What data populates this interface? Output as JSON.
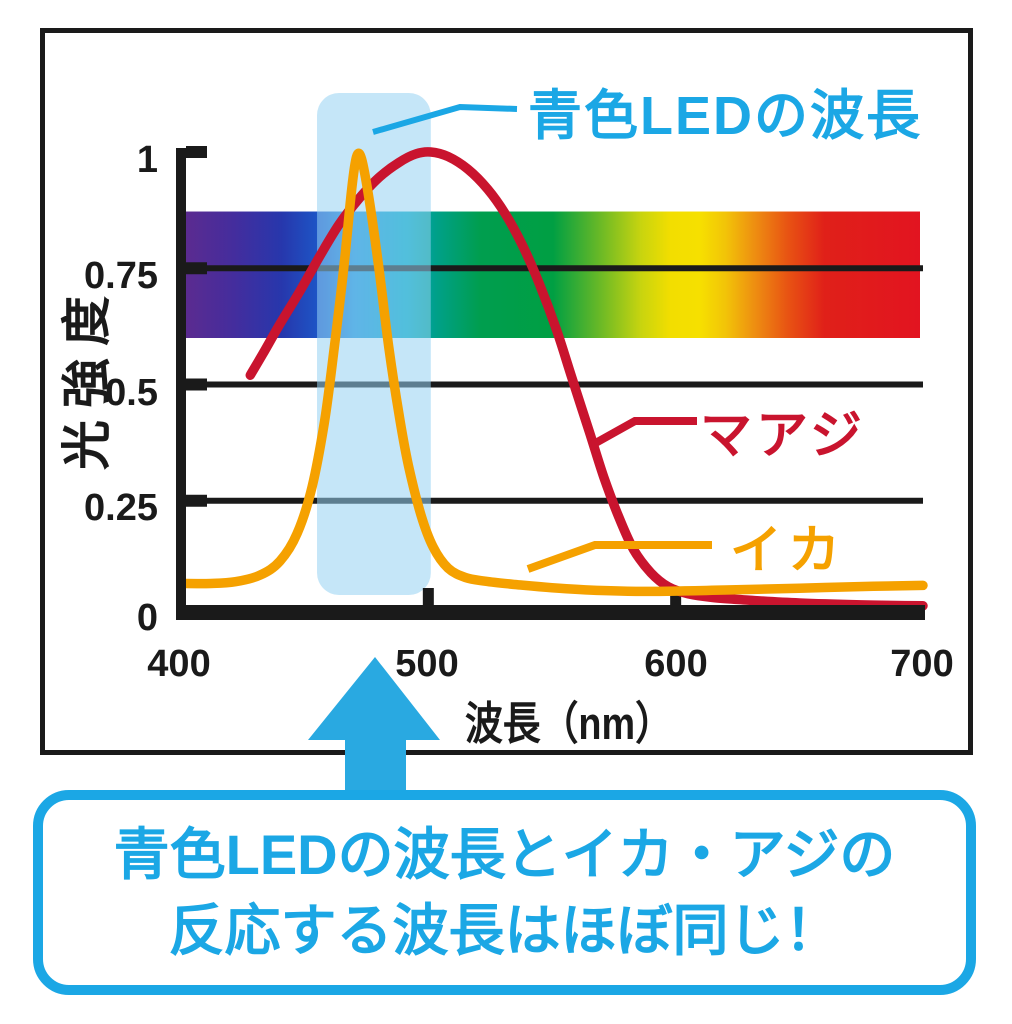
{
  "chart": {
    "y_axis_label": "光強度",
    "x_axis_label": "波長（nm）",
    "y_tick_labels": [
      "1",
      "0.75",
      "0.5",
      "0.25",
      "0"
    ],
    "x_tick_labels": [
      "400",
      "500",
      "600",
      "700"
    ],
    "band_label": "青色LEDの波長",
    "series_label_red": "マアジ",
    "series_label_orange": "イカ"
  },
  "callout_box": {
    "line1": "青色LEDの波長とイカ・アジの",
    "line2": "反応する波長はほぼ同じ！"
  },
  "colors": {
    "accent_blue": "#1ba7e5",
    "highlight_band": "#cfe9f8",
    "red": "#c9142e",
    "orange": "#f5a100",
    "black": "#1a1a1a"
  },
  "chart_data": {
    "type": "line",
    "xlabel": "波長（nm）",
    "ylabel": "光強度",
    "xlim": [
      400,
      700
    ],
    "ylim": [
      0,
      1
    ],
    "x_ticks": [
      400,
      500,
      600,
      700
    ],
    "y_ticks": [
      0,
      0.25,
      0.5,
      0.75,
      1
    ],
    "y_gridlines": [
      0.25,
      0.5,
      0.75
    ],
    "x_tick_stubs": [
      500,
      600
    ],
    "highlight_band": {
      "label": "青色LEDの波長",
      "x_range": [
        455,
        501
      ]
    },
    "spectrum_band": {
      "y_range": [
        0.6,
        0.872
      ],
      "stops": [
        {
          "t": 0.0,
          "c": "#5b2b90"
        },
        {
          "t": 0.065,
          "c": "#442d9d"
        },
        {
          "t": 0.13,
          "c": "#2737ac"
        },
        {
          "t": 0.18,
          "c": "#1d55c6"
        },
        {
          "t": 0.23,
          "c": "#1e92da"
        },
        {
          "t": 0.3,
          "c": "#00a9c2"
        },
        {
          "t": 0.34,
          "c": "#00a08a"
        },
        {
          "t": 0.4,
          "c": "#009e4f"
        },
        {
          "t": 0.5,
          "c": "#009f43"
        },
        {
          "t": 0.56,
          "c": "#63b728"
        },
        {
          "t": 0.62,
          "c": "#c8d40f"
        },
        {
          "t": 0.66,
          "c": "#f2de00"
        },
        {
          "t": 0.7,
          "c": "#f6e000"
        },
        {
          "t": 0.735,
          "c": "#f2c408"
        },
        {
          "t": 0.775,
          "c": "#ee8e11"
        },
        {
          "t": 0.82,
          "c": "#e85313"
        },
        {
          "t": 0.87,
          "c": "#e02019"
        },
        {
          "t": 1.0,
          "c": "#e21420"
        }
      ]
    },
    "series": [
      {
        "name": "マアジ",
        "color": "#c9142e",
        "points": [
          [
            428,
            0.52
          ],
          [
            433,
            0.565
          ],
          [
            440,
            0.63
          ],
          [
            448,
            0.7
          ],
          [
            456,
            0.775
          ],
          [
            464,
            0.845
          ],
          [
            472,
            0.9
          ],
          [
            480,
            0.945
          ],
          [
            488,
            0.977
          ],
          [
            495,
            0.996
          ],
          [
            501,
            1.0
          ],
          [
            508,
            0.99
          ],
          [
            516,
            0.963
          ],
          [
            524,
            0.92
          ],
          [
            531,
            0.868
          ],
          [
            538,
            0.8
          ],
          [
            545,
            0.715
          ],
          [
            552,
            0.615
          ],
          [
            558,
            0.515
          ],
          [
            565,
            0.4
          ],
          [
            571,
            0.3
          ],
          [
            577,
            0.215
          ],
          [
            583,
            0.145
          ],
          [
            590,
            0.095
          ],
          [
            597,
            0.065
          ],
          [
            605,
            0.05
          ],
          [
            615,
            0.042
          ],
          [
            630,
            0.036
          ],
          [
            650,
            0.03
          ],
          [
            675,
            0.026
          ],
          [
            700,
            0.024
          ]
        ]
      },
      {
        "name": "イカ",
        "color": "#f5a100",
        "points": [
          [
            400,
            0.072
          ],
          [
            412,
            0.072
          ],
          [
            422,
            0.076
          ],
          [
            432,
            0.09
          ],
          [
            440,
            0.12
          ],
          [
            447,
            0.18
          ],
          [
            453,
            0.28
          ],
          [
            458,
            0.42
          ],
          [
            462,
            0.58
          ],
          [
            466,
            0.76
          ],
          [
            469,
            0.92
          ],
          [
            471,
            0.99
          ],
          [
            473,
            0.985
          ],
          [
            476,
            0.9
          ],
          [
            480,
            0.75
          ],
          [
            484,
            0.58
          ],
          [
            488,
            0.44
          ],
          [
            492,
            0.325
          ],
          [
            497,
            0.22
          ],
          [
            502,
            0.15
          ],
          [
            508,
            0.105
          ],
          [
            515,
            0.085
          ],
          [
            523,
            0.077
          ],
          [
            535,
            0.07
          ],
          [
            550,
            0.063
          ],
          [
            570,
            0.057
          ],
          [
            590,
            0.055
          ],
          [
            620,
            0.058
          ],
          [
            650,
            0.062
          ],
          [
            680,
            0.066
          ],
          [
            700,
            0.068
          ]
        ]
      }
    ]
  }
}
